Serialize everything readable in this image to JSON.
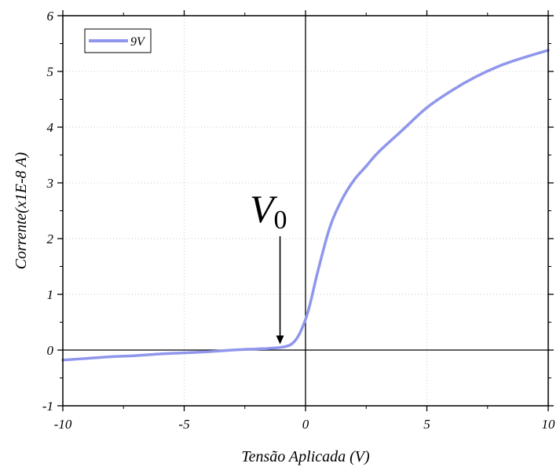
{
  "chart_data": {
    "type": "line",
    "xlabel": "Tensão Aplicada (V)",
    "ylabel": "Corrente(x1E-8 A)",
    "xlim": [
      -10,
      10
    ],
    "ylim": [
      -1,
      6
    ],
    "x_ticks": [
      -10,
      -5,
      0,
      5,
      10
    ],
    "y_ticks": [
      -1,
      0,
      1,
      2,
      3,
      4,
      5,
      6
    ],
    "grid": "dotted",
    "legend_position": "top-left",
    "zero_lines": true,
    "series": [
      {
        "name": "9V",
        "color": "#8f97ec",
        "x": [
          -10,
          -9,
          -8,
          -7,
          -6,
          -5,
          -4,
          -3,
          -2,
          -1.5,
          -1.0,
          -0.6,
          -0.3,
          0.0,
          0.2,
          0.5,
          1.0,
          1.5,
          2.0,
          2.5,
          3.0,
          4.0,
          5.0,
          6.0,
          7.0,
          8.0,
          9.0,
          10.0
        ],
        "y": [
          -0.18,
          -0.15,
          -0.12,
          -0.1,
          -0.07,
          -0.05,
          -0.03,
          0.0,
          0.02,
          0.03,
          0.05,
          0.1,
          0.25,
          0.55,
          0.85,
          1.4,
          2.2,
          2.7,
          3.05,
          3.3,
          3.55,
          3.95,
          4.35,
          4.65,
          4.9,
          5.1,
          5.25,
          5.38
        ]
      }
    ],
    "annotation": {
      "text_main": "V",
      "text_sub": "0",
      "arrow_x": -1.05,
      "arrow_y_from": 2.0,
      "arrow_y_to": 0.05
    }
  }
}
